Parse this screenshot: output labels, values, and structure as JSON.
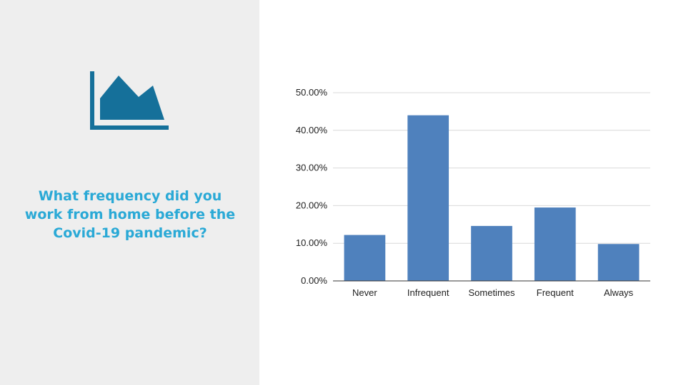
{
  "slide": {
    "question": "What frequency did you work from home before the Covid-19 pandemic?",
    "icon": "area-chart-icon"
  },
  "colors": {
    "panel_bg": "#eeeeee",
    "icon": "#15709a",
    "question_text": "#2aa9d6",
    "bar": "#4f81bd",
    "grid": "#d9d9d9",
    "axis": "#333333"
  },
  "chart_data": {
    "type": "bar",
    "title": "",
    "xlabel": "",
    "ylabel": "",
    "categories": [
      "Never",
      "Infrequent",
      "Sometimes",
      "Frequent",
      "Always"
    ],
    "values": [
      12.2,
      44.0,
      14.6,
      19.5,
      9.8
    ],
    "ylim": [
      0,
      50
    ],
    "yticks": [
      0,
      10,
      20,
      30,
      40,
      50
    ],
    "ytick_labels": [
      "0.00%",
      "10.00%",
      "20.00%",
      "30.00%",
      "40.00%",
      "50.00%"
    ],
    "grid": true,
    "legend": "none"
  }
}
